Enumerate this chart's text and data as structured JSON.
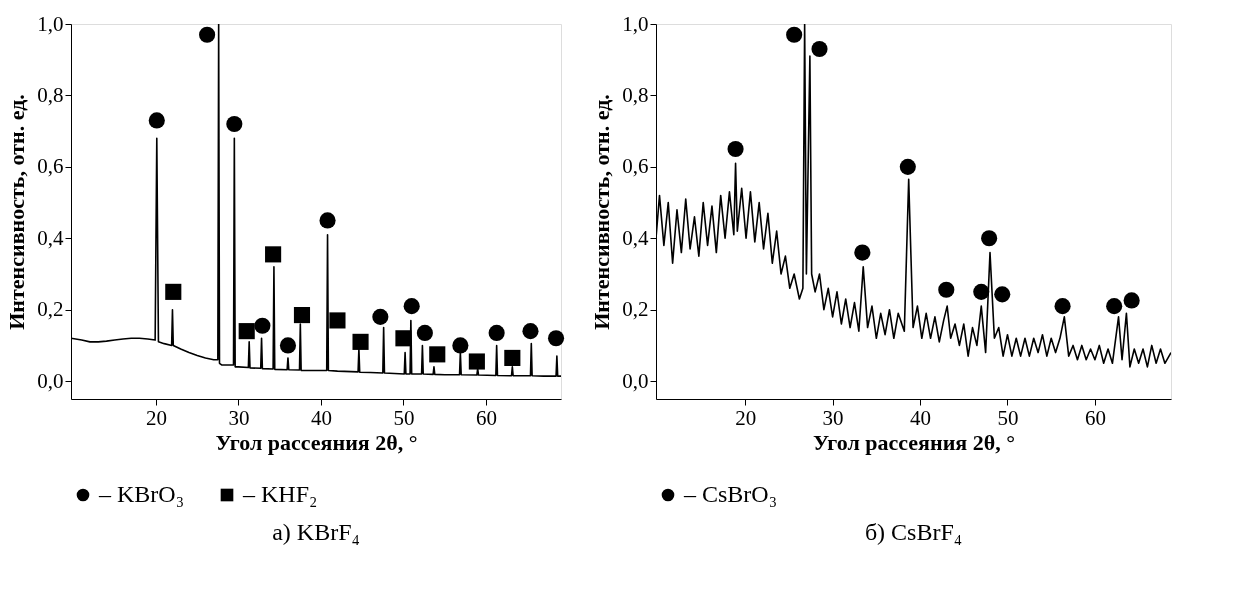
{
  "chart_data": [
    {
      "type": "line",
      "title": "а) KBrF₄",
      "xlabel": "Угол рассеяния 2θ, °",
      "ylabel": "Интенсивность, отн. ед.",
      "xlim": [
        9.7,
        69.1
      ],
      "xticks": [
        20,
        30,
        40,
        50,
        60
      ],
      "ylim": [
        -0.05,
        1.0
      ],
      "yticks": [
        {
          "value": 0,
          "label": "0,0"
        },
        {
          "value": 0.2,
          "label": "0,2"
        },
        {
          "value": 0.4,
          "label": "0,4"
        },
        {
          "value": 0.6,
          "label": "0,6"
        },
        {
          "value": 0.8,
          "label": "0,8"
        },
        {
          "value": 1.0,
          "label": "1,0"
        }
      ],
      "grid": false,
      "legend": "bottom",
      "series": [
        {
          "color": "#000000",
          "marker": "none",
          "x": [
            9.7,
            11,
            12,
            13,
            14,
            15,
            16,
            17,
            18,
            19,
            19.9,
            20.1,
            20.3,
            21,
            21.9,
            22.0,
            22.1,
            23,
            24,
            25,
            26,
            27,
            27.5,
            27.6,
            27.7,
            28,
            29,
            29.4,
            29.5,
            29.6,
            30,
            31.2,
            31.3,
            31.4,
            32.7,
            32.8,
            32.9,
            34.2,
            34.3,
            34.4,
            35.9,
            36.0,
            36.1,
            37.4,
            37.5,
            37.6,
            39,
            40.7,
            40.8,
            40.9,
            42,
            44.5,
            44.6,
            44.7,
            46,
            47.5,
            47.6,
            47.7,
            50.1,
            50.2,
            50.3,
            50.8,
            50.9,
            51.0,
            52.2,
            52.3,
            52.4,
            53.6,
            53.7,
            53.8,
            55,
            56.8,
            56.9,
            57.0,
            58.9,
            59.0,
            59.1,
            61.2,
            61.3,
            61.4,
            63.1,
            63.2,
            63.3,
            65.4,
            65.5,
            65.6,
            67,
            68.5,
            68.6,
            68.7,
            69.1
          ],
          "values": [
            0.12,
            0.115,
            0.11,
            0.11,
            0.112,
            0.115,
            0.118,
            0.12,
            0.12,
            0.118,
            0.115,
            0.68,
            0.11,
            0.105,
            0.1,
            0.2,
            0.1,
            0.09,
            0.08,
            0.072,
            0.065,
            0.06,
            0.06,
            1.0,
            0.05,
            0.045,
            0.045,
            0.045,
            0.68,
            0.04,
            0.04,
            0.038,
            0.11,
            0.037,
            0.036,
            0.12,
            0.035,
            0.034,
            0.32,
            0.033,
            0.032,
            0.065,
            0.032,
            0.031,
            0.16,
            0.03,
            0.03,
            0.03,
            0.41,
            0.03,
            0.028,
            0.026,
            0.09,
            0.025,
            0.024,
            0.023,
            0.15,
            0.023,
            0.02,
            0.08,
            0.02,
            0.02,
            0.17,
            0.02,
            0.02,
            0.1,
            0.02,
            0.019,
            0.04,
            0.019,
            0.018,
            0.018,
            0.08,
            0.018,
            0.017,
            0.035,
            0.017,
            0.016,
            0.1,
            0.016,
            0.015,
            0.04,
            0.015,
            0.015,
            0.105,
            0.015,
            0.014,
            0.014,
            0.07,
            0.014,
            0.014
          ]
        },
        {
          "type": "scatter",
          "name": "– KBrO₃",
          "color": "#000000",
          "marker": "circle",
          "x": [
            20.1,
            26.2,
            29.5,
            32.9,
            36.0,
            40.8,
            47.2,
            51.0,
            52.6,
            56.9,
            61.3,
            65.4,
            68.5
          ],
          "values": [
            0.73,
            0.97,
            0.72,
            0.155,
            0.1,
            0.45,
            0.18,
            0.21,
            0.135,
            0.1,
            0.135,
            0.14,
            0.12
          ]
        },
        {
          "type": "scatter",
          "name": "– KHF₂",
          "color": "#000000",
          "marker": "square",
          "x": [
            22.1,
            31.0,
            34.2,
            37.7,
            42.0,
            44.8,
            50.0,
            54.1,
            58.9,
            63.2
          ],
          "values": [
            0.25,
            0.14,
            0.355,
            0.185,
            0.17,
            0.11,
            0.12,
            0.075,
            0.055,
            0.065
          ]
        }
      ]
    },
    {
      "type": "line",
      "title": "б) CsBrF₄",
      "xlabel": "Угол рассеяния 2θ, °",
      "ylabel": "Интенсивность, отн. ед.",
      "xlim": [
        9.8,
        68.7
      ],
      "xticks": [
        20,
        30,
        40,
        50,
        60
      ],
      "ylim": [
        -0.05,
        1.0
      ],
      "yticks": [
        {
          "value": 0,
          "label": "0,0"
        },
        {
          "value": 0.2,
          "label": "0,2"
        },
        {
          "value": 0.4,
          "label": "0,4"
        },
        {
          "value": 0.6,
          "label": "0,6"
        },
        {
          "value": 0.8,
          "label": "0,8"
        },
        {
          "value": 1.0,
          "label": "1,0"
        }
      ],
      "grid": false,
      "legend": "bottom",
      "series": [
        {
          "color": "#000000",
          "marker": "none",
          "x": [
            9.8,
            10.2,
            10.7,
            11.2,
            11.7,
            12.2,
            12.7,
            13.2,
            13.7,
            14.2,
            14.7,
            15.2,
            15.7,
            16.2,
            16.7,
            17.2,
            17.7,
            18.2,
            18.7,
            18.9,
            19.1,
            19.6,
            20.1,
            20.6,
            21.1,
            21.6,
            22.1,
            22.6,
            23.1,
            23.6,
            24.1,
            24.6,
            25.1,
            25.6,
            26.2,
            26.6,
            26.8,
            27.0,
            27.4,
            27.6,
            28,
            28.5,
            29,
            29.5,
            30,
            30.5,
            31,
            31.5,
            32,
            32.5,
            33,
            33.5,
            34,
            34.5,
            35,
            35.5,
            36,
            36.5,
            37,
            37.5,
            38.2,
            38.7,
            39.2,
            39.7,
            40.2,
            40.7,
            41.2,
            41.7,
            42.2,
            42.7,
            43.1,
            43.5,
            44,
            44.5,
            45,
            45.5,
            46,
            46.5,
            47.0,
            47.5,
            48.0,
            48.5,
            49,
            49.5,
            50,
            50.5,
            51,
            51.5,
            52,
            52.5,
            53,
            53.5,
            54,
            54.5,
            55,
            55.5,
            56,
            56.5,
            57,
            57.5,
            58,
            58.5,
            59,
            59.5,
            60,
            60.5,
            61,
            61.5,
            62,
            62.7,
            63.1,
            63.6,
            64,
            64.5,
            65,
            65.5,
            66,
            66.5,
            67,
            67.5,
            68,
            68.7
          ],
          "values": [
            0.4,
            0.52,
            0.38,
            0.5,
            0.33,
            0.48,
            0.36,
            0.51,
            0.37,
            0.46,
            0.35,
            0.5,
            0.38,
            0.49,
            0.36,
            0.52,
            0.4,
            0.53,
            0.41,
            0.61,
            0.42,
            0.54,
            0.4,
            0.53,
            0.39,
            0.5,
            0.37,
            0.47,
            0.33,
            0.42,
            0.3,
            0.35,
            0.26,
            0.3,
            0.23,
            0.26,
            1.0,
            0.3,
            0.91,
            0.3,
            0.25,
            0.3,
            0.2,
            0.26,
            0.18,
            0.25,
            0.16,
            0.23,
            0.15,
            0.22,
            0.14,
            0.32,
            0.15,
            0.21,
            0.12,
            0.19,
            0.13,
            0.2,
            0.12,
            0.19,
            0.14,
            0.565,
            0.15,
            0.21,
            0.12,
            0.19,
            0.12,
            0.18,
            0.11,
            0.17,
            0.21,
            0.12,
            0.16,
            0.1,
            0.16,
            0.07,
            0.15,
            0.1,
            0.21,
            0.08,
            0.36,
            0.12,
            0.15,
            0.07,
            0.13,
            0.07,
            0.12,
            0.07,
            0.12,
            0.07,
            0.12,
            0.08,
            0.13,
            0.07,
            0.12,
            0.08,
            0.12,
            0.18,
            0.07,
            0.1,
            0.06,
            0.1,
            0.06,
            0.09,
            0.06,
            0.1,
            0.05,
            0.09,
            0.05,
            0.18,
            0.06,
            0.19,
            0.04,
            0.09,
            0.05,
            0.09,
            0.04,
            0.1,
            0.05,
            0.09,
            0.05,
            0.08
          ]
        },
        {
          "type": "scatter",
          "name": "– CsBrO₃",
          "color": "#000000",
          "marker": "circle",
          "x": [
            18.9,
            25.6,
            28.5,
            33.4,
            38.6,
            43.0,
            47.0,
            47.9,
            49.4,
            56.3,
            62.2,
            64.2
          ],
          "values": [
            0.65,
            0.97,
            0.93,
            0.36,
            0.6,
            0.256,
            0.25,
            0.4,
            0.243,
            0.21,
            0.21,
            0.226
          ]
        }
      ]
    }
  ]
}
